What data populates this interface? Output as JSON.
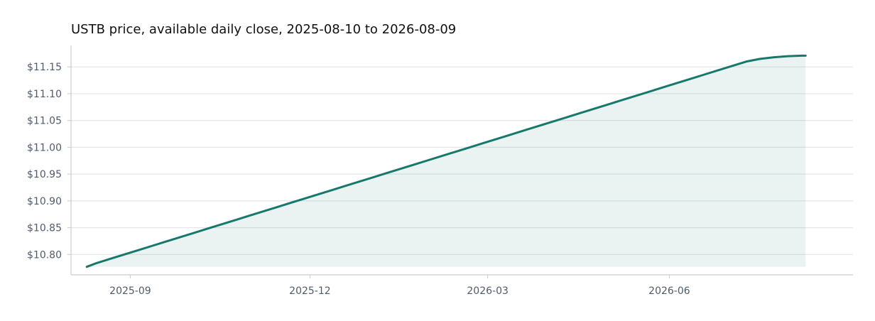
{
  "chart_data": {
    "type": "area",
    "title": "USTB price, available daily close, 2025-08-10 to 2026-08-09",
    "xlabel": "",
    "ylabel": "",
    "x_range": [
      "2025-08-10",
      "2026-08-09"
    ],
    "xlim": [
      "2025-08-02",
      "2026-09-02"
    ],
    "ylim": [
      10.762,
      11.19
    ],
    "x_ticks": [
      {
        "date": "2025-09-01",
        "label": "2025-09"
      },
      {
        "date": "2025-12-01",
        "label": "2025-12"
      },
      {
        "date": "2026-03-01",
        "label": "2026-03"
      },
      {
        "date": "2026-06-01",
        "label": "2026-06"
      }
    ],
    "y_ticks": [
      {
        "value": 10.8,
        "label": "$10.80"
      },
      {
        "value": 10.85,
        "label": "$10.85"
      },
      {
        "value": 10.9,
        "label": "$10.90"
      },
      {
        "value": 10.95,
        "label": "$10.95"
      },
      {
        "value": 11.0,
        "label": "$11.00"
      },
      {
        "value": 11.05,
        "label": "$11.05"
      },
      {
        "value": 11.1,
        "label": "$11.10"
      },
      {
        "value": 11.15,
        "label": "$11.15"
      }
    ],
    "grid": "horizontal",
    "legend": "none",
    "colors": {
      "line": "#17796b",
      "fill": "#17796b",
      "grid": "#e3e6ea",
      "axis": "#c7ccd2",
      "tick_text": "#4f5b6b",
      "title": "#111111"
    },
    "series": [
      {
        "values_note": "",
        "x": [
          "2025-08-10",
          "2025-08-15",
          "2025-08-22",
          "2025-08-29",
          "2025-09-05",
          "2025-09-12",
          "2025-09-19",
          "2025-09-26",
          "2025-10-03",
          "2025-10-10",
          "2025-10-17",
          "2025-10-24",
          "2025-10-31",
          "2025-11-07",
          "2025-11-14",
          "2025-11-21",
          "2025-11-28",
          "2025-12-05",
          "2025-12-12",
          "2025-12-19",
          "2025-12-26",
          "2026-01-02",
          "2026-01-09",
          "2026-01-16",
          "2026-01-23",
          "2026-01-30",
          "2026-02-06",
          "2026-02-13",
          "2026-02-20",
          "2026-02-27",
          "2026-03-06",
          "2026-03-13",
          "2026-03-20",
          "2026-03-27",
          "2026-04-03",
          "2026-04-10",
          "2026-04-17",
          "2026-04-24",
          "2026-05-01",
          "2026-05-08",
          "2026-05-15",
          "2026-05-22",
          "2026-05-29",
          "2026-06-05",
          "2026-06-12",
          "2026-06-19",
          "2026-06-26",
          "2026-07-03",
          "2026-07-10",
          "2026-07-17",
          "2026-07-24",
          "2026-07-31",
          "2026-08-07",
          "2026-08-09"
        ],
        "y": [
          10.777,
          10.784,
          10.792,
          10.8,
          10.808,
          10.816,
          10.824,
          10.832,
          10.84,
          10.848,
          10.856,
          10.864,
          10.872,
          10.88,
          10.888,
          10.896,
          10.904,
          10.912,
          10.92,
          10.928,
          10.936,
          10.944,
          10.952,
          10.96,
          10.968,
          10.976,
          10.984,
          10.992,
          11.0,
          11.008,
          11.016,
          11.024,
          11.032,
          11.04,
          11.048,
          11.056,
          11.064,
          11.072,
          11.08,
          11.088,
          11.096,
          11.104,
          11.112,
          11.12,
          11.128,
          11.136,
          11.144,
          11.152,
          11.16,
          11.165,
          11.168,
          11.17,
          11.171,
          11.171
        ]
      }
    ]
  }
}
